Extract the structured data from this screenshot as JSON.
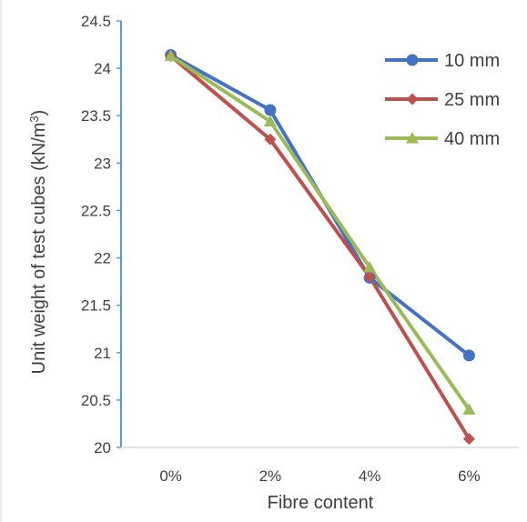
{
  "chart_data": {
    "type": "line",
    "title": "",
    "xlabel": "Fibre content",
    "ylabel": "Unit weight of test cubes (kN/m³)",
    "categories": [
      "0%",
      "2%",
      "4%",
      "6%"
    ],
    "ylim": [
      20,
      24.5
    ],
    "yticks": [
      "20",
      "20.5",
      "21",
      "21.5",
      "22",
      "22.5",
      "23",
      "23.5",
      "24",
      "24.5"
    ],
    "grid": false,
    "legend_position": "top-right",
    "series": [
      {
        "name": "10 mm",
        "values": [
          24.14,
          23.56,
          21.79,
          20.97
        ],
        "color": "#4472C4",
        "marker": "circle"
      },
      {
        "name": "25 mm",
        "values": [
          24.13,
          23.25,
          21.8,
          20.09
        ],
        "color": "#C0504D",
        "marker": "diamond"
      },
      {
        "name": "40 mm",
        "values": [
          24.13,
          23.44,
          21.9,
          20.4
        ],
        "color": "#9BBB59",
        "marker": "triangle"
      }
    ]
  }
}
